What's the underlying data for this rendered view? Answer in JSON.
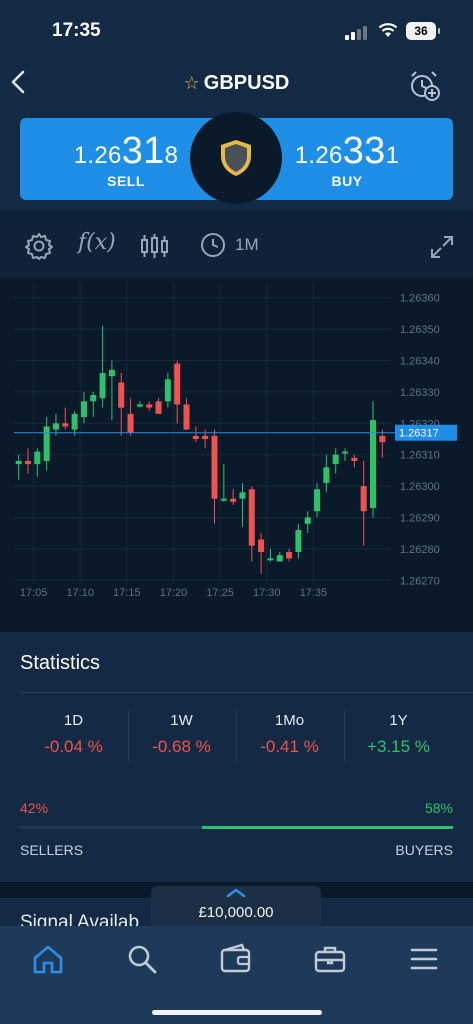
{
  "status": {
    "time": "17:35",
    "battery": "36"
  },
  "header": {
    "title": "GBPUSD"
  },
  "prices": {
    "sell": {
      "prefix": "1.26",
      "big": "31",
      "small": "8",
      "label": "SELL"
    },
    "buy": {
      "prefix": "1.26",
      "big": "33",
      "small": "1",
      "label": "BUY"
    }
  },
  "toolbar": {
    "timeframe": "1M"
  },
  "chart_data": {
    "type": "candlestick",
    "x_ticks": [
      "17:05",
      "17:10",
      "17:15",
      "17:20",
      "17:25",
      "17:30",
      "17:35"
    ],
    "y_ticks": [
      "1.26360",
      "1.26350",
      "1.26340",
      "1.26330",
      "1.26320",
      "1.26310",
      "1.26300",
      "1.26290",
      "1.26280",
      "1.26270"
    ],
    "ylim": [
      1.26265,
      1.26365
    ],
    "current_price": "1.26317",
    "up_color": "#2fc16a",
    "down_color": "#ef5350",
    "candles": [
      [
        1.26307,
        1.2631,
        1.26302,
        1.26308
      ],
      [
        1.26308,
        1.26312,
        1.26304,
        1.26307
      ],
      [
        1.26307,
        1.26312,
        1.26303,
        1.26311
      ],
      [
        1.26308,
        1.26322,
        1.26305,
        1.26319
      ],
      [
        1.26318,
        1.26323,
        1.26316,
        1.2632
      ],
      [
        1.2632,
        1.26325,
        1.26318,
        1.26319
      ],
      [
        1.26318,
        1.26324,
        1.26316,
        1.26323
      ],
      [
        1.26322,
        1.2633,
        1.2632,
        1.26327
      ],
      [
        1.26327,
        1.2633,
        1.26322,
        1.26329
      ],
      [
        1.26328,
        1.26351,
        1.26325,
        1.26336
      ],
      [
        1.26335,
        1.2634,
        1.26321,
        1.26337
      ],
      [
        1.26333,
        1.26336,
        1.26316,
        1.26325
      ],
      [
        1.26323,
        1.26328,
        1.26316,
        1.26317
      ],
      [
        1.26326,
        1.26327,
        1.26325,
        1.26326
      ],
      [
        1.26326,
        1.26327,
        1.26324,
        1.26325
      ],
      [
        1.26327,
        1.26328,
        1.26324,
        1.26323
      ],
      [
        1.26327,
        1.26336,
        1.26325,
        1.26334
      ],
      [
        1.26339,
        1.2634,
        1.2632,
        1.26326
      ],
      [
        1.26326,
        1.26328,
        1.26318,
        1.26318
      ],
      [
        1.26316,
        1.26319,
        1.26314,
        1.26315
      ],
      [
        1.26316,
        1.26318,
        1.26312,
        1.26315
      ],
      [
        1.26316,
        1.26318,
        1.26288,
        1.26296
      ],
      [
        1.26296,
        1.26307,
        1.26295,
        1.26296
      ],
      [
        1.26296,
        1.26299,
        1.26294,
        1.26295
      ],
      [
        1.26296,
        1.26301,
        1.26287,
        1.26298
      ],
      [
        1.26299,
        1.263,
        1.26276,
        1.26281
      ],
      [
        1.26283,
        1.26285,
        1.26272,
        1.26279
      ],
      [
        1.26277,
        1.2628,
        1.26276,
        1.26277
      ],
      [
        1.26276,
        1.26279,
        1.26276,
        1.26278
      ],
      [
        1.26279,
        1.2628,
        1.26276,
        1.26277
      ],
      [
        1.26279,
        1.26288,
        1.26277,
        1.26286
      ],
      [
        1.26288,
        1.26292,
        1.26285,
        1.2629
      ],
      [
        1.26292,
        1.26301,
        1.2629,
        1.26299
      ],
      [
        1.26301,
        1.2631,
        1.26298,
        1.26306
      ],
      [
        1.26307,
        1.26312,
        1.26304,
        1.2631
      ],
      [
        1.26311,
        1.26312,
        1.26308,
        1.26311
      ],
      [
        1.26309,
        1.2631,
        1.26306,
        1.26308
      ],
      [
        1.263,
        1.26308,
        1.26281,
        1.26292
      ],
      [
        1.26293,
        1.26327,
        1.2629,
        1.26321
      ],
      [
        1.26316,
        1.26318,
        1.26309,
        1.26314
      ]
    ]
  },
  "statistics": {
    "title": "Statistics",
    "periods": [
      {
        "label": "1D",
        "value": "-0.04 %"
      },
      {
        "label": "1W",
        "value": "-0.68 %"
      },
      {
        "label": "1Mo",
        "value": "-0.41 %"
      },
      {
        "label": "1Y",
        "value": "+3.15 %"
      }
    ],
    "sellers_pct": "42%",
    "buyers_pct": "58%",
    "sellers_label": "SELLERS",
    "buyers_label": "BUYERS"
  },
  "signal": {
    "text": "Signal Availab"
  },
  "balance": {
    "value": "£10,000.00"
  },
  "colors": {
    "accent": "#1e8ee6",
    "positive": "#2fc16a",
    "negative": "#ef5350",
    "star": "#e8b84a"
  }
}
